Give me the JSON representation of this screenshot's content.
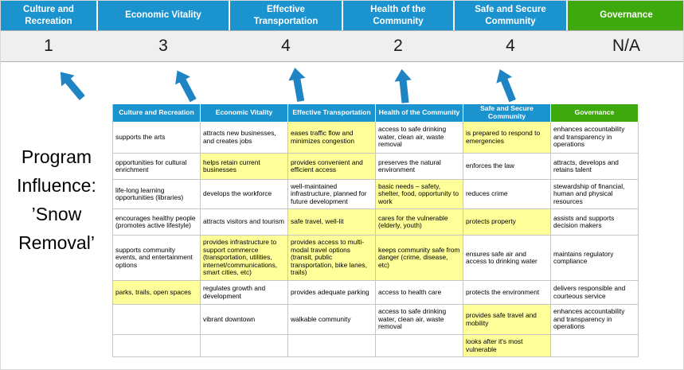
{
  "title": "Program\nInfluence:\n’Snow\nRemoval’",
  "colors": {
    "blue": "#1B93CF",
    "green": "#3EA90C",
    "yellow": "#FFFF99",
    "arrow": "#1E84C4"
  },
  "scoreboard": {
    "columns": [
      {
        "label": "Culture and\nRecreation",
        "score": "1",
        "theme": "blue"
      },
      {
        "label": "Economic Vitality",
        "score": "3",
        "theme": "blue"
      },
      {
        "label": "Effective\nTransportation",
        "score": "4",
        "theme": "blue"
      },
      {
        "label": "Health of the\nCommunity",
        "score": "2",
        "theme": "blue"
      },
      {
        "label": "Safe and Secure\nCommunity",
        "score": "4",
        "theme": "blue"
      },
      {
        "label": "Governance",
        "score": "N/A",
        "theme": "green"
      }
    ]
  },
  "matrix": {
    "headers": [
      {
        "label": "Culture and Recreation",
        "theme": "blue"
      },
      {
        "label": "Economic Vitality",
        "theme": "blue"
      },
      {
        "label": "Effective Transportation",
        "theme": "blue"
      },
      {
        "label": "Health of the Community",
        "theme": "blue"
      },
      {
        "label": "Safe and Secure\nCommunity",
        "theme": "blue"
      },
      {
        "label": "Governance",
        "theme": "green"
      }
    ],
    "rows": [
      [
        {
          "t": "supports the arts"
        },
        {
          "t": "attracts new businesses, and creates jobs"
        },
        {
          "t": "eases traffic flow and minimizes congestion",
          "hl": true
        },
        {
          "t": "access to safe drinking water, clean air, waste removal"
        },
        {
          "t": "is prepared to respond to emergencies",
          "hl": true
        },
        {
          "t": "enhances accountability and transparency in operations"
        }
      ],
      [
        {
          "t": "opportunities for cultural enrichment"
        },
        {
          "t": "helps retain current businesses",
          "hl": true
        },
        {
          "t": "provides convenient and efficient access",
          "hl": true
        },
        {
          "t": "preserves the natural environment"
        },
        {
          "t": "enforces the law"
        },
        {
          "t": "attracts, develops and retains talent"
        }
      ],
      [
        {
          "t": "life-long learning opportunities (libraries)"
        },
        {
          "t": "develops the workforce"
        },
        {
          "t": "well-maintained infrastructure, planned for future development"
        },
        {
          "t": "basic needs – safety, shelter, food, opportunity to work",
          "hl": true
        },
        {
          "t": "reduces crime"
        },
        {
          "t": "stewardship of financial, human and physical resources"
        }
      ],
      [
        {
          "t": "encourages healthy people (promotes active lifestyle)"
        },
        {
          "t": "attracts visitors and tourism"
        },
        {
          "t": "safe travel, well-lit",
          "hl": true
        },
        {
          "t": "cares for the vulnerable (elderly, youth)",
          "hl": true
        },
        {
          "t": "protects property",
          "hl": true
        },
        {
          "t": "assists and supports decision makers"
        }
      ],
      [
        {
          "t": "supports community events, and entertainment options"
        },
        {
          "t": "provides infrastructure to support commerce (transportation, utilities, internet/communications, smart cities, etc)",
          "hl": true
        },
        {
          "t": "provides access to multi-modal travel options (transit, public transportation, bike lanes, trails)",
          "hl": true
        },
        {
          "t": "keeps community safe from danger (crime, disease, etc)",
          "hl": true
        },
        {
          "t": "ensures safe air and access to drinking water"
        },
        {
          "t": "maintains regulatory compliance"
        }
      ],
      [
        {
          "t": "parks, trails, open spaces",
          "hl": true
        },
        {
          "t": "regulates growth and development"
        },
        {
          "t": "provides adequate parking"
        },
        {
          "t": "access to health care"
        },
        {
          "t": "protects the environment"
        },
        {
          "t": "delivers responsible and courteous service"
        }
      ],
      [
        {
          "t": ""
        },
        {
          "t": "vibrant downtown"
        },
        {
          "t": "walkable community"
        },
        {
          "t": "access to safe drinking water, clean air, waste removal"
        },
        {
          "t": "provides safe travel and mobility",
          "hl": true
        },
        {
          "t": "enhances accountability and transparency in operations"
        }
      ],
      [
        {
          "t": ""
        },
        {
          "t": ""
        },
        {
          "t": ""
        },
        {
          "t": ""
        },
        {
          "t": "looks after it's most vulnerable",
          "hl": true
        },
        {
          "t": ""
        }
      ]
    ]
  }
}
